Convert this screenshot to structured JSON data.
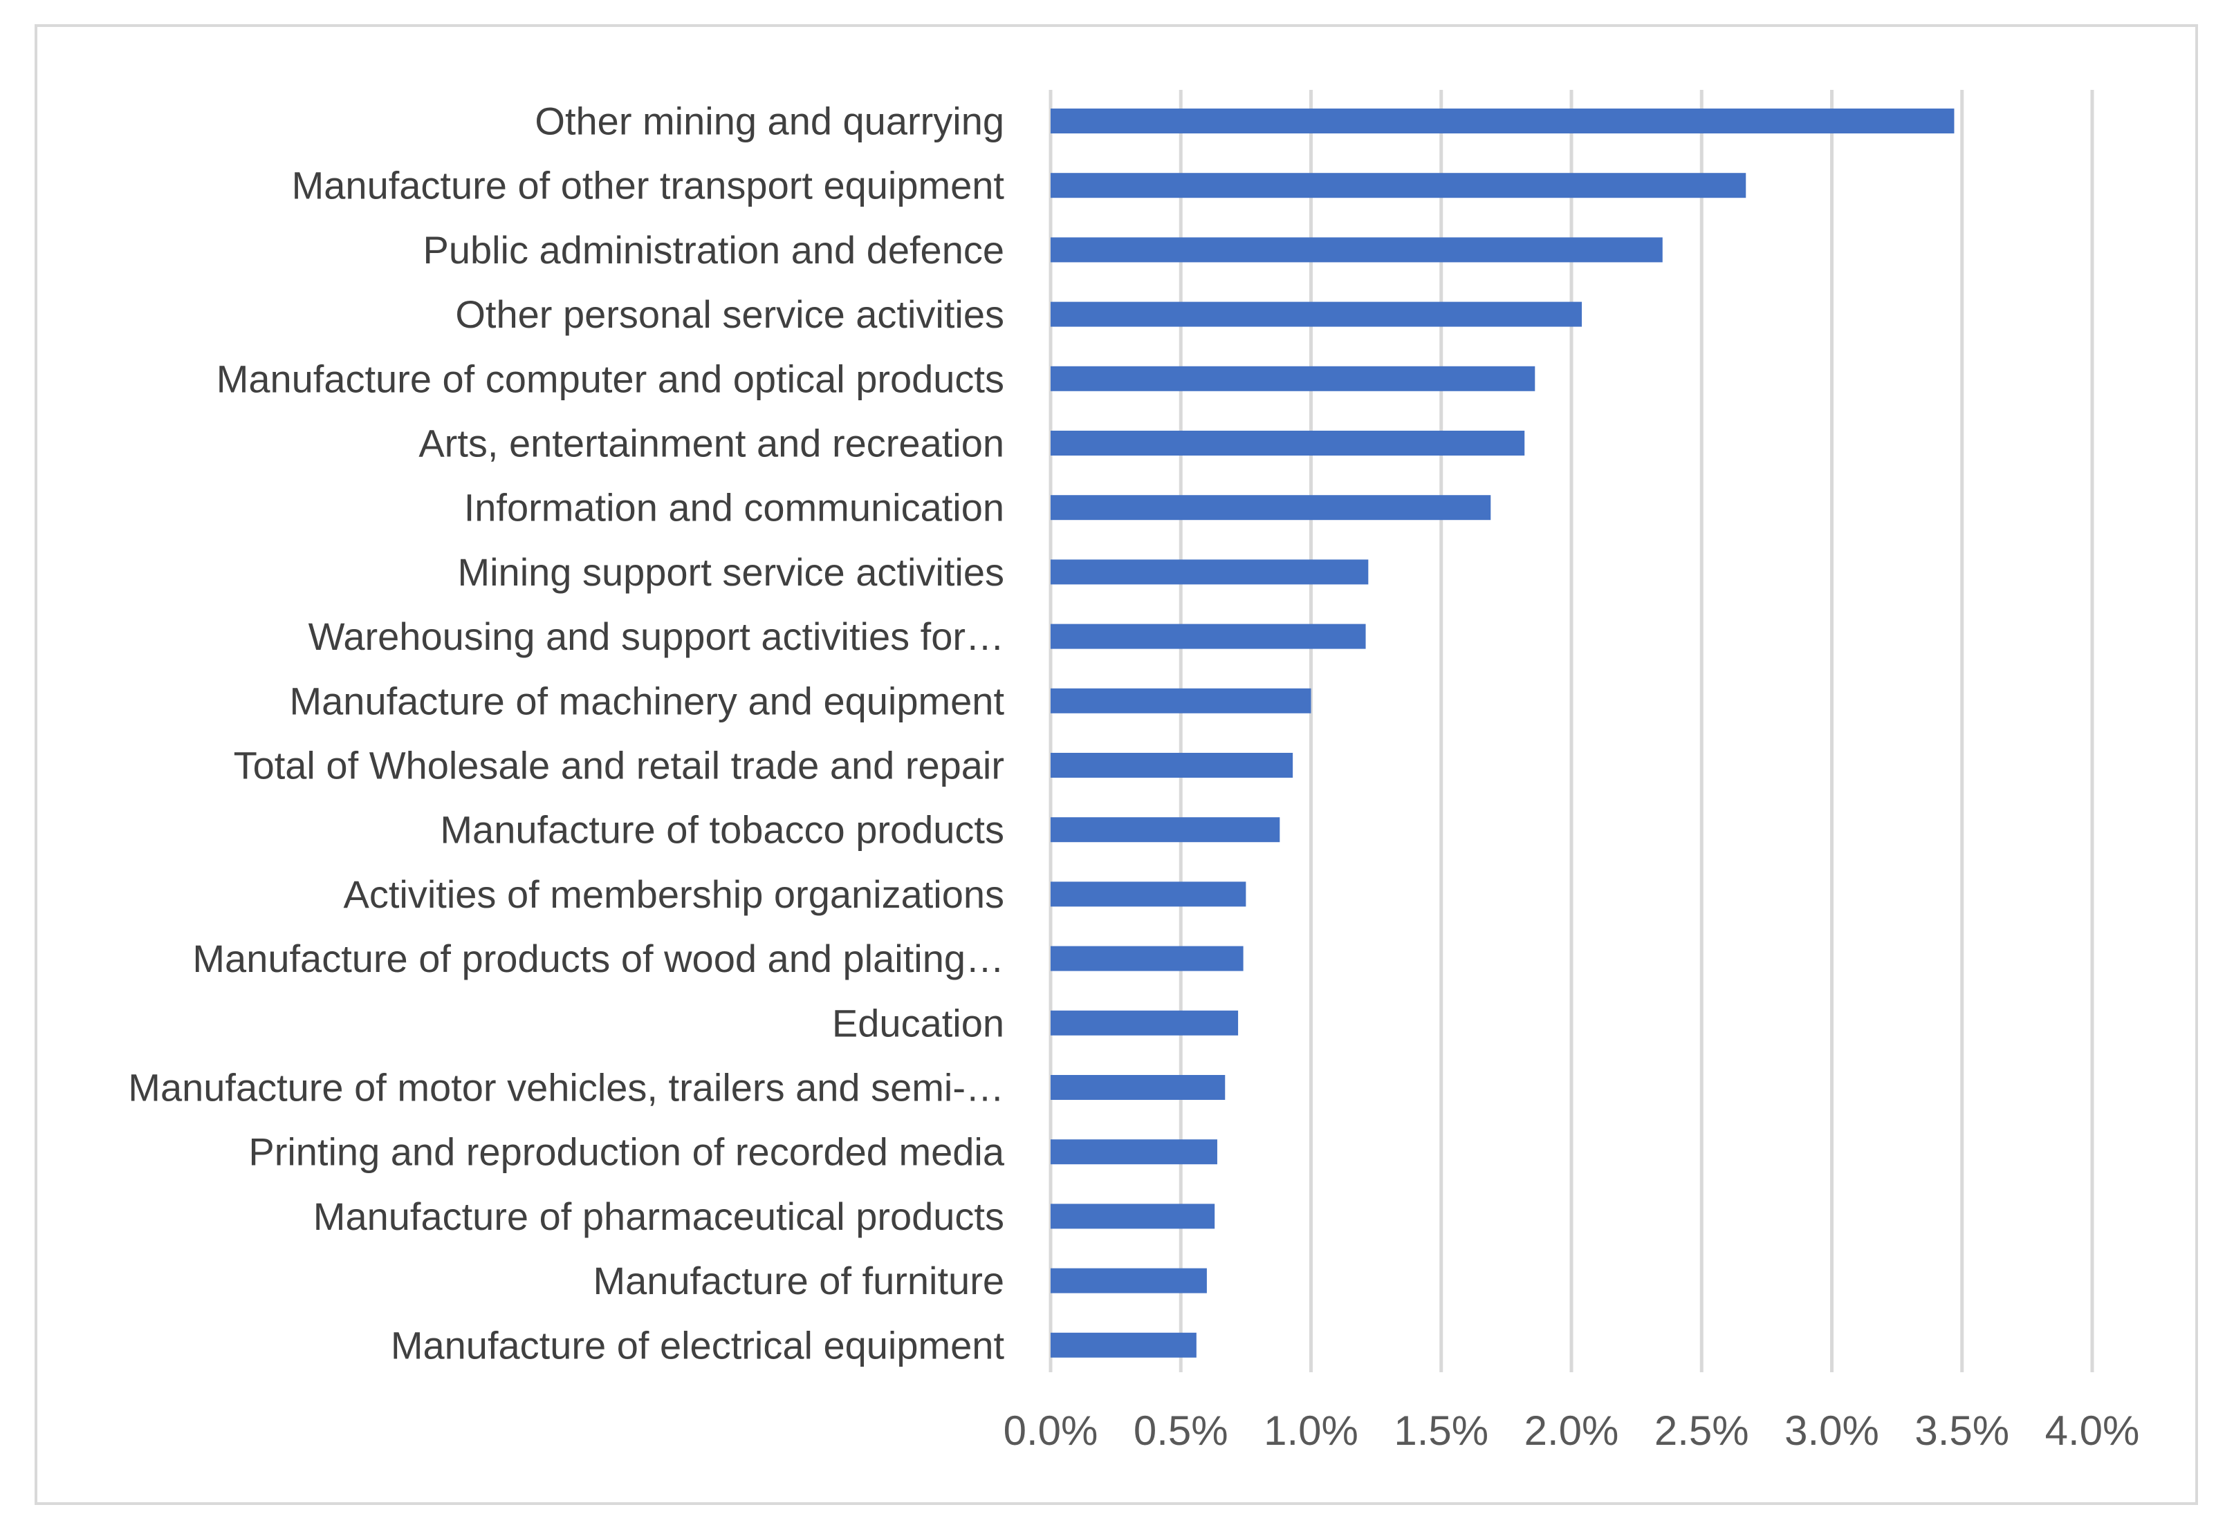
{
  "chart_data": {
    "type": "bar",
    "orientation": "horizontal",
    "title": "",
    "xlabel": "",
    "ylabel": "",
    "xlim": [
      0,
      4
    ],
    "x_tick_values": [
      0,
      0.5,
      1.0,
      1.5,
      2.0,
      2.5,
      3.0,
      3.5,
      4.0
    ],
    "x_tick_labels": [
      "0.0%",
      "0.5%",
      "1.0%",
      "1.5%",
      "2.0%",
      "2.5%",
      "3.0%",
      "3.5%",
      "4.0%"
    ],
    "value_unit": "%",
    "grid": "vertical",
    "legend": "none",
    "bar_color": "#4472c4",
    "grid_color": "#d9d9d9",
    "categories": [
      "Other mining and quarrying",
      "Manufacture of other transport equipment",
      "Public administration and defence",
      "Other personal service activities",
      "Manufacture of computer and optical products",
      "Arts, entertainment and recreation",
      "Information and communication",
      "Mining support service activities",
      "Warehousing and support activities for…",
      "Manufacture of machinery and equipment",
      "Total of Wholesale and retail trade and repair",
      "Manufacture of tobacco products",
      "Activities of membership organizations",
      "Manufacture of products of wood and plaiting…",
      "Education",
      "Manufacture of motor vehicles, trailers and semi-…",
      "Printing and reproduction of recorded media",
      "Manufacture of pharmaceutical products",
      "Manufacture of furniture",
      "Manufacture of electrical equipment"
    ],
    "values": [
      3.47,
      2.67,
      2.35,
      2.04,
      1.86,
      1.82,
      1.69,
      1.22,
      1.21,
      1.0,
      0.93,
      0.88,
      0.75,
      0.74,
      0.72,
      0.67,
      0.64,
      0.63,
      0.6,
      0.56
    ]
  }
}
